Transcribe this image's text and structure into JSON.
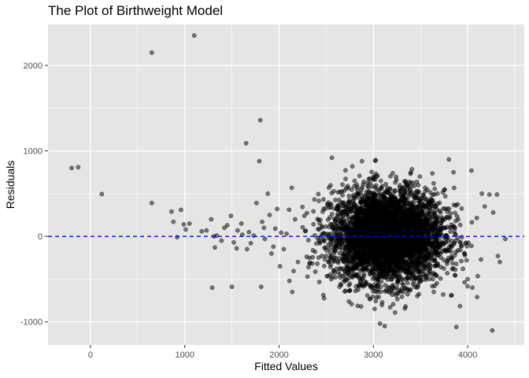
{
  "chart_data": {
    "type": "scatter",
    "title": "The Plot of Birthweight Model",
    "xlabel": "Fitted Values",
    "ylabel": "Residuals",
    "xlim": [
      -450,
      4600
    ],
    "ylim": [
      -1270,
      2480
    ],
    "x_ticks": [
      0,
      1000,
      2000,
      3000,
      4000
    ],
    "x_minor_ticks": [
      -500,
      500,
      1500,
      2500,
      3500,
      4500
    ],
    "y_ticks": [
      -1000,
      0,
      1000,
      2000
    ],
    "y_minor_ticks": [
      -500,
      500,
      1500
    ],
    "x_tick_labels": [
      "0",
      "1000",
      "2000",
      "3000",
      "4000"
    ],
    "y_tick_labels": [
      "-1000",
      "0",
      "1000",
      "2000"
    ],
    "grid": true,
    "reference_line": {
      "y": 0,
      "style": "dashed",
      "color": "#0000ff"
    },
    "panel_background": "#e5e5e5",
    "grid_color": "#ffffff",
    "point_color": "#000000",
    "point_alpha": 0.5,
    "cluster": {
      "description_note": "dense cloud of points",
      "center_x": 3150,
      "center_y": 0,
      "sd_x": 300,
      "sd_y": 270,
      "n": 4200,
      "x_range": [
        2000,
        4300
      ],
      "y_range": [
        -900,
        900
      ]
    },
    "points": [
      [
        -200,
        800
      ],
      [
        -130,
        810
      ],
      [
        120,
        495
      ],
      [
        650,
        2150
      ],
      [
        1100,
        2350
      ],
      [
        650,
        390
      ],
      [
        860,
        290
      ],
      [
        960,
        310
      ],
      [
        880,
        170
      ],
      [
        990,
        140
      ],
      [
        1010,
        80
      ],
      [
        1050,
        150
      ],
      [
        920,
        -10
      ],
      [
        1180,
        60
      ],
      [
        1230,
        70
      ],
      [
        1280,
        200
      ],
      [
        1290,
        -600
      ],
      [
        1310,
        0
      ],
      [
        1340,
        10
      ],
      [
        1320,
        -130
      ],
      [
        1390,
        -50
      ],
      [
        1420,
        100
      ],
      [
        1450,
        130
      ],
      [
        1490,
        240
      ],
      [
        1500,
        -590
      ],
      [
        1520,
        -70
      ],
      [
        1550,
        -140
      ],
      [
        1560,
        70
      ],
      [
        1600,
        150
      ],
      [
        1610,
        20
      ],
      [
        1650,
        1090
      ],
      [
        1660,
        -150
      ],
      [
        1680,
        50
      ],
      [
        1700,
        -80
      ],
      [
        1730,
        10
      ],
      [
        1760,
        390
      ],
      [
        1790,
        880
      ],
      [
        1800,
        1360
      ],
      [
        1810,
        -590
      ],
      [
        1820,
        170
      ],
      [
        1840,
        100
      ],
      [
        1850,
        -30
      ],
      [
        1880,
        500
      ],
      [
        1900,
        250
      ],
      [
        1920,
        -200
      ],
      [
        1940,
        -120
      ],
      [
        1960,
        90
      ],
      [
        1980,
        320
      ],
      [
        2010,
        -350
      ],
      [
        2050,
        -150
      ],
      [
        2080,
        30
      ],
      [
        2110,
        -520
      ],
      [
        2140,
        -650
      ],
      [
        2170,
        200
      ],
      [
        2200,
        -300
      ],
      [
        2560,
        920
      ],
      [
        2880,
        880
      ],
      [
        2870,
        -820
      ],
      [
        3070,
        -1020
      ],
      [
        3120,
        -1050
      ],
      [
        3230,
        -890
      ],
      [
        3880,
        -1060
      ],
      [
        4100,
        -710
      ],
      [
        4260,
        -1100
      ],
      [
        4320,
        -230
      ],
      [
        4340,
        -300
      ],
      [
        4310,
        490
      ],
      [
        4230,
        490
      ],
      [
        4040,
        770
      ],
      [
        4150,
        500
      ],
      [
        4180,
        350
      ],
      [
        4270,
        280
      ],
      [
        4400,
        -30
      ],
      [
        3950,
        -380
      ],
      [
        4000,
        -500
      ],
      [
        4050,
        -600
      ],
      [
        3740,
        -680
      ],
      [
        3640,
        -650
      ],
      [
        3800,
        900
      ],
      [
        3850,
        750
      ]
    ]
  }
}
